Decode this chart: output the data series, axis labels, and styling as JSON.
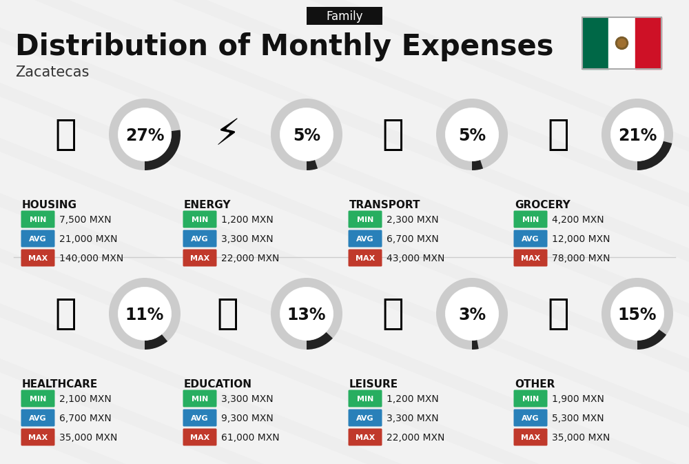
{
  "title": "Distribution of Monthly Expenses",
  "subtitle": "Zacatecas",
  "tag": "Family",
  "background_color": "#f2f2f2",
  "categories": [
    {
      "name": "HOUSING",
      "percent": 27,
      "min": "7,500 MXN",
      "avg": "21,000 MXN",
      "max": "140,000 MXN",
      "row": 0,
      "col": 0
    },
    {
      "name": "ENERGY",
      "percent": 5,
      "min": "1,200 MXN",
      "avg": "3,300 MXN",
      "max": "22,000 MXN",
      "row": 0,
      "col": 1
    },
    {
      "name": "TRANSPORT",
      "percent": 5,
      "min": "2,300 MXN",
      "avg": "6,700 MXN",
      "max": "43,000 MXN",
      "row": 0,
      "col": 2
    },
    {
      "name": "GROCERY",
      "percent": 21,
      "min": "4,200 MXN",
      "avg": "12,000 MXN",
      "max": "78,000 MXN",
      "row": 0,
      "col": 3
    },
    {
      "name": "HEALTHCARE",
      "percent": 11,
      "min": "2,100 MXN",
      "avg": "6,700 MXN",
      "max": "35,000 MXN",
      "row": 1,
      "col": 0
    },
    {
      "name": "EDUCATION",
      "percent": 13,
      "min": "3,300 MXN",
      "avg": "9,300 MXN",
      "max": "61,000 MXN",
      "row": 1,
      "col": 1
    },
    {
      "name": "LEISURE",
      "percent": 3,
      "min": "1,200 MXN",
      "avg": "3,300 MXN",
      "max": "22,000 MXN",
      "row": 1,
      "col": 2
    },
    {
      "name": "OTHER",
      "percent": 15,
      "min": "1,900 MXN",
      "avg": "5,300 MXN",
      "max": "35,000 MXN",
      "row": 1,
      "col": 3
    }
  ],
  "color_min": "#27ae60",
  "color_avg": "#2980b9",
  "color_max": "#c0392b",
  "donut_dark": "#222222",
  "donut_light": "#cccccc",
  "tag_bg": "#111111",
  "flag_green": "#006847",
  "flag_white": "#ffffff",
  "flag_red": "#ce1126",
  "title_fontsize": 30,
  "subtitle_fontsize": 15,
  "tag_fontsize": 12,
  "cat_fontsize": 11,
  "pct_fontsize": 17,
  "badge_fontsize": 8,
  "val_fontsize": 10
}
